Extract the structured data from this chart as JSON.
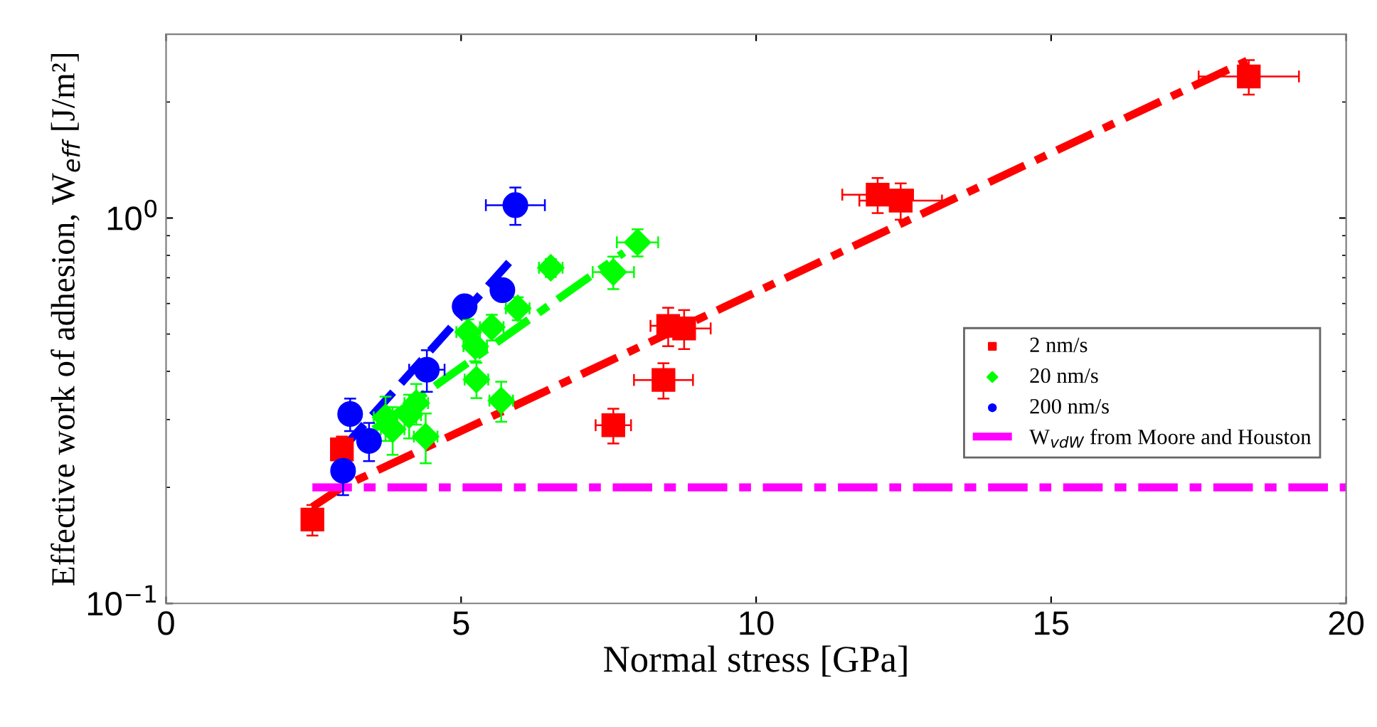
{
  "chart_data": {
    "type": "scatter",
    "xlabel": "Normal stress [GPa]",
    "ylabel": "Effective work of adhesion, W$_{eff}$ [J/m²]",
    "log": "y",
    "xlim": [
      0,
      20
    ],
    "ylim": [
      0.1,
      3
    ],
    "xticks": [
      0,
      5,
      10,
      15,
      20
    ],
    "yticks": [
      {
        "value": 0.1,
        "label": "10$^{−1}$"
      },
      {
        "value": 1,
        "label": "10$^{0}$"
      }
    ],
    "legend": "right",
    "grid": false,
    "series": [
      {
        "type": "line",
        "color": "#ff0000",
        "line_style": "dashdot",
        "x": [
          2.48,
          3.0,
          18.32
        ],
        "values": [
          0.178,
          0.201,
          2.56
        ]
      },
      {
        "type": "line",
        "color": "#00ff00",
        "line_style": "dashdot",
        "x": [
          3.52,
          7.76
        ],
        "values": [
          0.283,
          0.814
        ]
      },
      {
        "type": "line",
        "color": "#0000ff",
        "line_style": "dashed",
        "x": [
          3.0,
          5.84
        ],
        "values": [
          0.253,
          0.775
        ]
      },
      {
        "name": "2 nm/s",
        "color": "#ff0000",
        "marker": "square",
        "x": [
          2.48,
          2.98,
          7.58,
          8.43,
          8.51,
          8.78,
          12.06,
          12.45,
          18.35
        ],
        "values": [
          0.165,
          0.251,
          0.29,
          0.38,
          0.525,
          0.517,
          1.15,
          1.11,
          2.33
        ],
        "xerrors": [
          0.05,
          0.05,
          0.3,
          0.5,
          0.3,
          0.45,
          0.6,
          0.7,
          0.85
        ],
        "errors": [
          0.015,
          0.02,
          0.03,
          0.04,
          0.06,
          0.06,
          0.12,
          0.12,
          0.24
        ]
      },
      {
        "name": "20 nm/s",
        "color": "#00ff00",
        "marker": "diamond",
        "x": [
          3.72,
          3.84,
          4.12,
          4.24,
          4.4,
          5.12,
          5.24,
          5.52,
          5.26,
          5.68,
          5.96,
          6.52,
          7.58,
          7.99
        ],
        "values": [
          0.304,
          0.283,
          0.308,
          0.331,
          0.271,
          0.506,
          0.465,
          0.521,
          0.381,
          0.336,
          0.583,
          0.743,
          0.724,
          0.865
        ],
        "xerrors": [
          0.2,
          0.2,
          0.2,
          0.2,
          0.2,
          0.2,
          0.2,
          0.2,
          0.2,
          0.2,
          0.2,
          0.2,
          0.35,
          0.35
        ],
        "errors": [
          0.04,
          0.04,
          0.04,
          0.04,
          0.04,
          0.04,
          0.04,
          0.04,
          0.04,
          0.04,
          0.04,
          0.04,
          0.07,
          0.07
        ]
      },
      {
        "name": "200 nm/s",
        "color": "#0000ff",
        "marker": "circle",
        "x": [
          3.0,
          3.12,
          3.44,
          4.42,
          5.06,
          5.7,
          5.92
        ],
        "values": [
          0.221,
          0.31,
          0.264,
          0.404,
          0.59,
          0.65,
          1.08
        ],
        "xerrors": [
          0.05,
          0.05,
          0.05,
          0.3,
          0.05,
          0.05,
          0.5
        ],
        "errors": [
          0.03,
          0.03,
          0.03,
          0.05,
          0.03,
          0.03,
          0.12
        ]
      },
      {
        "type": "line",
        "name": "W$_{vdW}$ from Moore and Houston",
        "color": "#ff00ff",
        "line_style": "dashdot",
        "x": [
          2.48,
          20
        ],
        "values": [
          0.2,
          0.2
        ]
      }
    ]
  }
}
